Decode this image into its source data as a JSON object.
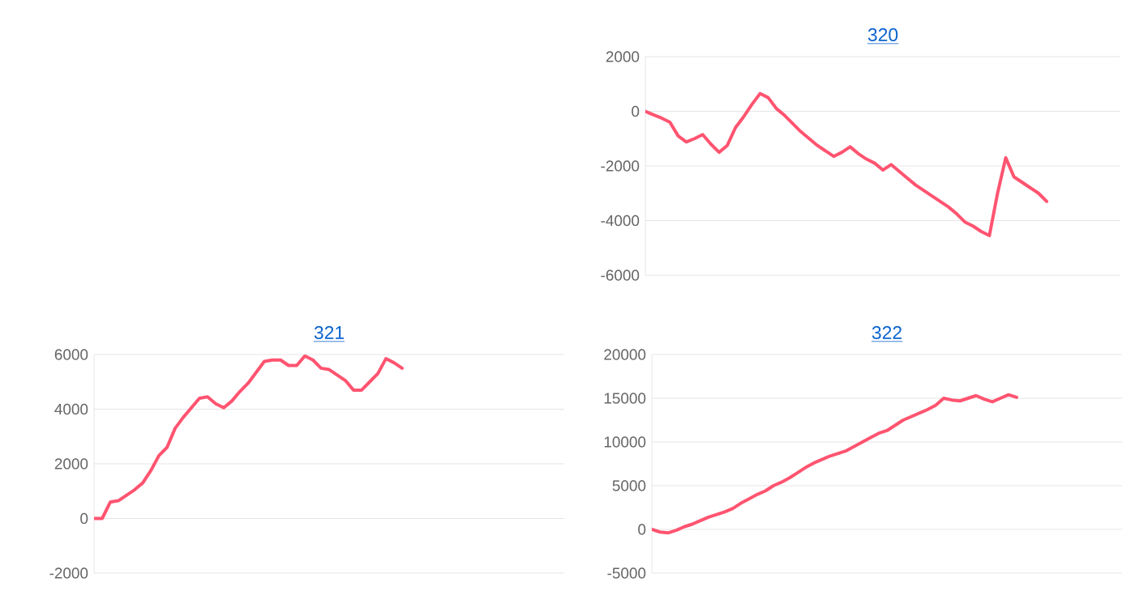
{
  "chart_data": [
    {
      "type": "line",
      "title": "320",
      "categories": [
        null,
        null,
        null,
        null,
        null,
        null,
        null,
        null,
        null,
        null,
        null,
        null,
        null,
        null,
        null,
        null,
        null,
        null,
        null,
        null,
        null,
        null,
        null,
        null,
        null,
        null,
        null,
        null,
        null,
        null,
        null,
        null,
        null,
        null,
        null,
        null,
        null,
        null,
        null,
        null,
        null,
        null,
        null,
        null,
        null,
        null,
        null,
        null,
        null,
        null,
        null,
        null,
        null,
        null,
        null,
        null,
        null,
        null,
        null
      ],
      "ylim": [
        -6000,
        2000
      ],
      "yticks": [
        -6000,
        -4000,
        -2000,
        0,
        2000
      ],
      "grid": "y",
      "tick_labels": "y",
      "marker": "none",
      "line_style": "solid",
      "series": [
        {
          "color": "#ff5470",
          "values": [
            0,
            -130,
            -250,
            -400,
            -900,
            -1120,
            -1000,
            -850,
            -1200,
            -1500,
            -1250,
            -600,
            -200,
            250,
            650,
            500,
            100,
            -150,
            -450,
            -750,
            -1000,
            -1250,
            -1450,
            -1650,
            -1500,
            -1300,
            -1550,
            -1750,
            -1900,
            -2150,
            -1950,
            -2200,
            -2450,
            -2700,
            -2900,
            -3100,
            -3300,
            -3500,
            -3750,
            -4050,
            -4200,
            -4400,
            -4550,
            -3000,
            -1700,
            -2400,
            -2600,
            -2800,
            -3000,
            -3300,
            null,
            null,
            null,
            null,
            null,
            null,
            null,
            null,
            null
          ]
        }
      ]
    },
    {
      "type": "line",
      "title": "321",
      "categories": [
        null,
        null,
        null,
        null,
        null,
        null,
        null,
        null,
        null,
        null,
        null,
        null,
        null,
        null,
        null,
        null,
        null,
        null,
        null,
        null,
        null,
        null,
        null,
        null,
        null,
        null,
        null,
        null,
        null,
        null,
        null,
        null,
        null,
        null,
        null,
        null,
        null,
        null,
        null,
        null,
        null,
        null,
        null,
        null,
        null,
        null,
        null,
        null,
        null,
        null,
        null,
        null,
        null,
        null,
        null,
        null,
        null,
        null,
        null
      ],
      "ylim": [
        -2000,
        6000
      ],
      "yticks": [
        -2000,
        0,
        2000,
        4000,
        6000
      ],
      "grid": "y",
      "tick_labels": "y",
      "marker": "none",
      "line_style": "solid",
      "series": [
        {
          "color": "#ff5470",
          "values": [
            0,
            0,
            600,
            650,
            850,
            1050,
            1300,
            1750,
            2300,
            2600,
            3300,
            3700,
            4050,
            4400,
            4450,
            4200,
            4050,
            4300,
            4650,
            4950,
            5350,
            5750,
            5800,
            5800,
            5600,
            5600,
            5950,
            5800,
            5500,
            5450,
            5250,
            5050,
            4700,
            4700,
            5000,
            5300,
            5850,
            5700,
            5500,
            null,
            null,
            null,
            null,
            null,
            null,
            null,
            null,
            null,
            null,
            null,
            null,
            null,
            null,
            null,
            null,
            null,
            null,
            null,
            null
          ]
        }
      ]
    },
    {
      "type": "line",
      "title": "322",
      "categories": [
        null,
        null,
        null,
        null,
        null,
        null,
        null,
        null,
        null,
        null,
        null,
        null,
        null,
        null,
        null,
        null,
        null,
        null,
        null,
        null,
        null,
        null,
        null,
        null,
        null,
        null,
        null,
        null,
        null,
        null,
        null,
        null,
        null,
        null,
        null,
        null,
        null,
        null,
        null,
        null,
        null,
        null,
        null,
        null,
        null,
        null,
        null,
        null,
        null,
        null,
        null,
        null,
        null,
        null,
        null,
        null,
        null,
        null,
        null
      ],
      "ylim": [
        -5000,
        20000
      ],
      "yticks": [
        -5000,
        0,
        5000,
        10000,
        15000,
        20000
      ],
      "grid": "y",
      "tick_labels": "y",
      "marker": "none",
      "line_style": "solid",
      "series": [
        {
          "color": "#ff5470",
          "values": [
            0,
            -300,
            -400,
            -100,
            300,
            600,
            1000,
            1400,
            1700,
            2000,
            2400,
            3000,
            3500,
            4000,
            4400,
            5000,
            5400,
            5900,
            6500,
            7100,
            7600,
            8000,
            8400,
            8700,
            9000,
            9500,
            10000,
            10500,
            11000,
            11300,
            11900,
            12500,
            12900,
            13300,
            13700,
            14200,
            15000,
            14800,
            14700,
            15000,
            15300,
            14900,
            14600,
            15000,
            15400,
            15100,
            null,
            null,
            null,
            null,
            null,
            null,
            null,
            null,
            null,
            null,
            null,
            null,
            null
          ]
        }
      ]
    }
  ]
}
